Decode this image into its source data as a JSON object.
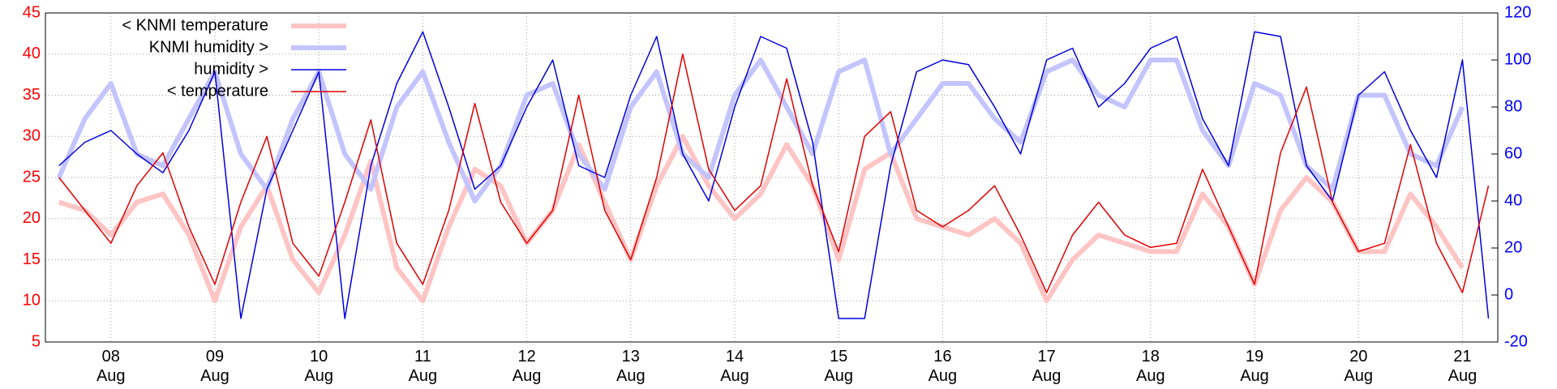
{
  "chart_data": {
    "type": "line",
    "x": [
      7.5,
      7.75,
      8.0,
      8.25,
      8.5,
      8.75,
      9.0,
      9.25,
      9.5,
      9.75,
      10.0,
      10.25,
      10.5,
      10.75,
      11.0,
      11.25,
      11.5,
      11.75,
      12.0,
      12.25,
      12.5,
      12.75,
      13.0,
      13.25,
      13.5,
      13.75,
      14.0,
      14.25,
      14.5,
      14.75,
      15.0,
      15.25,
      15.5,
      15.75,
      16.0,
      16.25,
      16.5,
      16.75,
      17.0,
      17.25,
      17.5,
      17.75,
      18.0,
      18.25,
      18.5,
      18.75,
      19.0,
      19.25,
      19.5,
      19.75,
      20.0,
      20.25,
      20.5,
      20.75,
      21.0,
      21.25
    ],
    "series": [
      {
        "name": "< KNMI temperature",
        "color": "#ffc4c4",
        "width": 6,
        "values": [
          22,
          21,
          18,
          22,
          23,
          18,
          10,
          19,
          24,
          15,
          11,
          18,
          27,
          14,
          10,
          19,
          26,
          24,
          17,
          21,
          29,
          22,
          15,
          24,
          30,
          24,
          20,
          23,
          29,
          24,
          15,
          26,
          28,
          20,
          19,
          18,
          20,
          17,
          10,
          15,
          18,
          17,
          16,
          16,
          23,
          19,
          12,
          21,
          25,
          22,
          16,
          16,
          23,
          19,
          14,
          null
        ]
      },
      {
        "name": "KNMI humidity >",
        "color": "#c4c4ff",
        "width": 6,
        "axis": "y2",
        "values": [
          50,
          75,
          90,
          60,
          55,
          75,
          95,
          60,
          45,
          75,
          95,
          60,
          45,
          80,
          95,
          65,
          40,
          55,
          85,
          90,
          60,
          45,
          80,
          95,
          60,
          50,
          85,
          100,
          80,
          60,
          95,
          100,
          60,
          75,
          90,
          90,
          75,
          65,
          95,
          100,
          85,
          80,
          100,
          100,
          70,
          55,
          90,
          85,
          55,
          45,
          85,
          85,
          60,
          55,
          80,
          null
        ]
      },
      {
        "name": "humidity >",
        "color": "#0000e0",
        "width": 1.5,
        "axis": "y2",
        "values": [
          55,
          65,
          70,
          60,
          52,
          70,
          95,
          -10,
          45,
          70,
          95,
          -10,
          55,
          90,
          112,
          80,
          45,
          55,
          80,
          100,
          55,
          50,
          85,
          110,
          60,
          40,
          80,
          110,
          105,
          65,
          -10,
          -10,
          55,
          95,
          100,
          98,
          80,
          60,
          100,
          105,
          80,
          90,
          105,
          110,
          75,
          55,
          112,
          110,
          55,
          40,
          85,
          95,
          70,
          50,
          100,
          -10
        ]
      },
      {
        "name": "< temperature",
        "color": "#e00000",
        "width": 1.5,
        "values": [
          25,
          21,
          17,
          24,
          28,
          19,
          12,
          22,
          30,
          17,
          13,
          22,
          32,
          17,
          12,
          21,
          34,
          22,
          17,
          21,
          35,
          21,
          15,
          25,
          40,
          26,
          21,
          24,
          37,
          24,
          16,
          30,
          33,
          21,
          19,
          21,
          24,
          18,
          11,
          18,
          22,
          18,
          16.5,
          17,
          26,
          19,
          12,
          28,
          36,
          22,
          16,
          17,
          29,
          17,
          11,
          24
        ]
      }
    ],
    "xlim": [
      7.37,
      21.34
    ],
    "xticks": [
      {
        "value": 8,
        "label": "08\nAug"
      },
      {
        "value": 9,
        "label": "09\nAug"
      },
      {
        "value": 10,
        "label": "10\nAug"
      },
      {
        "value": 11,
        "label": "11\nAug"
      },
      {
        "value": 12,
        "label": "12\nAug"
      },
      {
        "value": 13,
        "label": "13\nAug"
      },
      {
        "value": 14,
        "label": "14\nAug"
      },
      {
        "value": 15,
        "label": "15\nAug"
      },
      {
        "value": 16,
        "label": "16\nAug"
      },
      {
        "value": 17,
        "label": "17\nAug"
      },
      {
        "value": 18,
        "label": "18\nAug"
      },
      {
        "value": 19,
        "label": "19\nAug"
      },
      {
        "value": 20,
        "label": "20\nAug"
      },
      {
        "value": 21,
        "label": "21\nAug"
      }
    ],
    "ylim": [
      5,
      45
    ],
    "yticks": [
      5,
      10,
      15,
      20,
      25,
      30,
      35,
      40,
      45
    ],
    "ytick_color": "#ff0000",
    "y2lim": [
      -20,
      120
    ],
    "y2ticks": [
      -20,
      0,
      20,
      40,
      60,
      80,
      100,
      120
    ],
    "y2tick_color": "#0000ff",
    "grid": true,
    "legend": "top-left"
  }
}
